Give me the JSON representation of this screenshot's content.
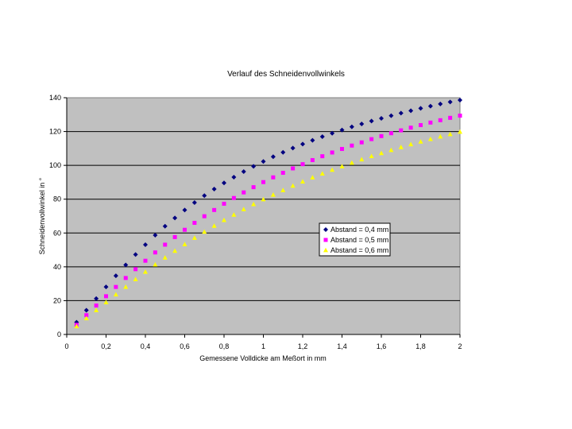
{
  "chart_data": {
    "type": "scatter",
    "title": "Verlauf des Schneidenvollwinkels",
    "xlabel": "Gemessene Volldicke am Meßort in mm",
    "ylabel": "Schneidenvollwinkel in °",
    "xlim": [
      0,
      2
    ],
    "ylim": [
      0,
      140
    ],
    "x_ticks": [
      "0",
      "0,2",
      "0,4",
      "0,6",
      "0,8",
      "1",
      "1,2",
      "1,4",
      "1,6",
      "1,8",
      "2"
    ],
    "y_ticks": [
      "0",
      "20",
      "40",
      "60",
      "80",
      "100",
      "120",
      "140"
    ],
    "grid": "horizontal",
    "plot_background": "#c0c0c0",
    "legend_position": "inside-right",
    "x": [
      0.05,
      0.1,
      0.15,
      0.2,
      0.25,
      0.3,
      0.35,
      0.4,
      0.45,
      0.5,
      0.55,
      0.6,
      0.65,
      0.7,
      0.75,
      0.8,
      0.85,
      0.9,
      0.95,
      1.0,
      1.05,
      1.1,
      1.15,
      1.2,
      1.25,
      1.3,
      1.35,
      1.4,
      1.45,
      1.5,
      1.55,
      1.6,
      1.65,
      1.7,
      1.75,
      1.8,
      1.85,
      1.9,
      1.95,
      2.0
    ],
    "series": [
      {
        "name": "Abstand = 0,4 mm",
        "color": "#000080",
        "marker": "diamond",
        "values": [
          7.2,
          14.3,
          21.2,
          28.1,
          34.7,
          41.1,
          47.3,
          53.1,
          58.7,
          64.0,
          68.9,
          73.6,
          78.0,
          82.1,
          86.0,
          89.6,
          93.0,
          96.3,
          99.4,
          102.3,
          105.1,
          107.7,
          110.2,
          112.6,
          114.8,
          117.0,
          119.0,
          120.9,
          122.8,
          124.5,
          126.2,
          127.8,
          129.4,
          130.9,
          132.3,
          133.7,
          135.0,
          136.3,
          137.5,
          138.6
        ]
      },
      {
        "name": "Abstand = 0,5 mm",
        "color": "#ff00ff",
        "marker": "square",
        "values": [
          5.7,
          11.4,
          17.1,
          22.6,
          28.1,
          33.4,
          38.6,
          43.6,
          48.5,
          53.1,
          57.6,
          61.9,
          66.0,
          69.9,
          73.6,
          77.3,
          80.7,
          84.0,
          87.1,
          90.1,
          92.9,
          95.6,
          98.2,
          100.7,
          103.1,
          105.4,
          107.6,
          109.7,
          111.7,
          113.6,
          115.5,
          117.3,
          119.0,
          120.7,
          122.3,
          123.8,
          125.3,
          126.7,
          128.1,
          129.4
        ]
      },
      {
        "name": "Abstand = 0,6 mm",
        "color": "#ffff00",
        "marker": "triangle",
        "values": [
          4.8,
          9.5,
          14.3,
          19.0,
          23.6,
          28.1,
          32.6,
          37.0,
          41.3,
          45.4,
          49.4,
          53.3,
          57.1,
          60.7,
          64.2,
          67.6,
          70.8,
          74.0,
          77.0,
          79.9,
          82.6,
          85.3,
          87.9,
          90.4,
          92.8,
          95.1,
          97.3,
          99.4,
          101.5,
          103.5,
          105.4,
          107.2,
          109.0,
          110.7,
          112.4,
          114.0,
          115.5,
          117.0,
          118.4,
          119.8
        ]
      }
    ]
  }
}
